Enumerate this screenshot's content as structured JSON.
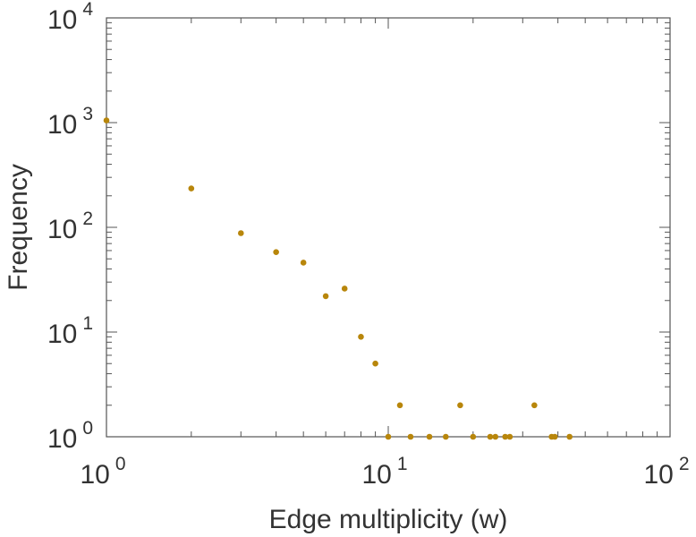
{
  "chart_data": {
    "type": "scatter",
    "title": "",
    "xlabel": "Edge multiplicity (w)",
    "ylabel": "Frequency",
    "x_scale": "log",
    "y_scale": "log",
    "xlim": [
      1,
      100
    ],
    "ylim": [
      1,
      10000
    ],
    "grid": false,
    "legend": "none",
    "marker_color": "#b8860b",
    "axis_color": "#555555",
    "text_color": "#333333",
    "x_ticks": [
      {
        "base": "10",
        "exp": "0",
        "value": 1
      },
      {
        "base": "10",
        "exp": "1",
        "value": 10
      },
      {
        "base": "10",
        "exp": "2",
        "value": 100
      }
    ],
    "y_ticks": [
      {
        "base": "10",
        "exp": "0",
        "value": 1
      },
      {
        "base": "10",
        "exp": "1",
        "value": 10
      },
      {
        "base": "10",
        "exp": "2",
        "value": 100
      },
      {
        "base": "10",
        "exp": "3",
        "value": 1000
      },
      {
        "base": "10",
        "exp": "4",
        "value": 10000
      }
    ],
    "series": [
      {
        "points": [
          {
            "x": 1,
            "y": 1050
          },
          {
            "x": 2,
            "y": 235
          },
          {
            "x": 3,
            "y": 88
          },
          {
            "x": 4,
            "y": 58
          },
          {
            "x": 5,
            "y": 46
          },
          {
            "x": 6,
            "y": 22
          },
          {
            "x": 7,
            "y": 26
          },
          {
            "x": 8,
            "y": 9
          },
          {
            "x": 9,
            "y": 5
          },
          {
            "x": 10,
            "y": 1
          },
          {
            "x": 11,
            "y": 2
          },
          {
            "x": 12,
            "y": 1
          },
          {
            "x": 14,
            "y": 1
          },
          {
            "x": 16,
            "y": 1
          },
          {
            "x": 18,
            "y": 2
          },
          {
            "x": 20,
            "y": 1
          },
          {
            "x": 23,
            "y": 1
          },
          {
            "x": 24,
            "y": 1
          },
          {
            "x": 26,
            "y": 1
          },
          {
            "x": 27,
            "y": 1
          },
          {
            "x": 33,
            "y": 2
          },
          {
            "x": 38,
            "y": 1
          },
          {
            "x": 39,
            "y": 1
          },
          {
            "x": 44,
            "y": 1
          }
        ]
      }
    ]
  }
}
